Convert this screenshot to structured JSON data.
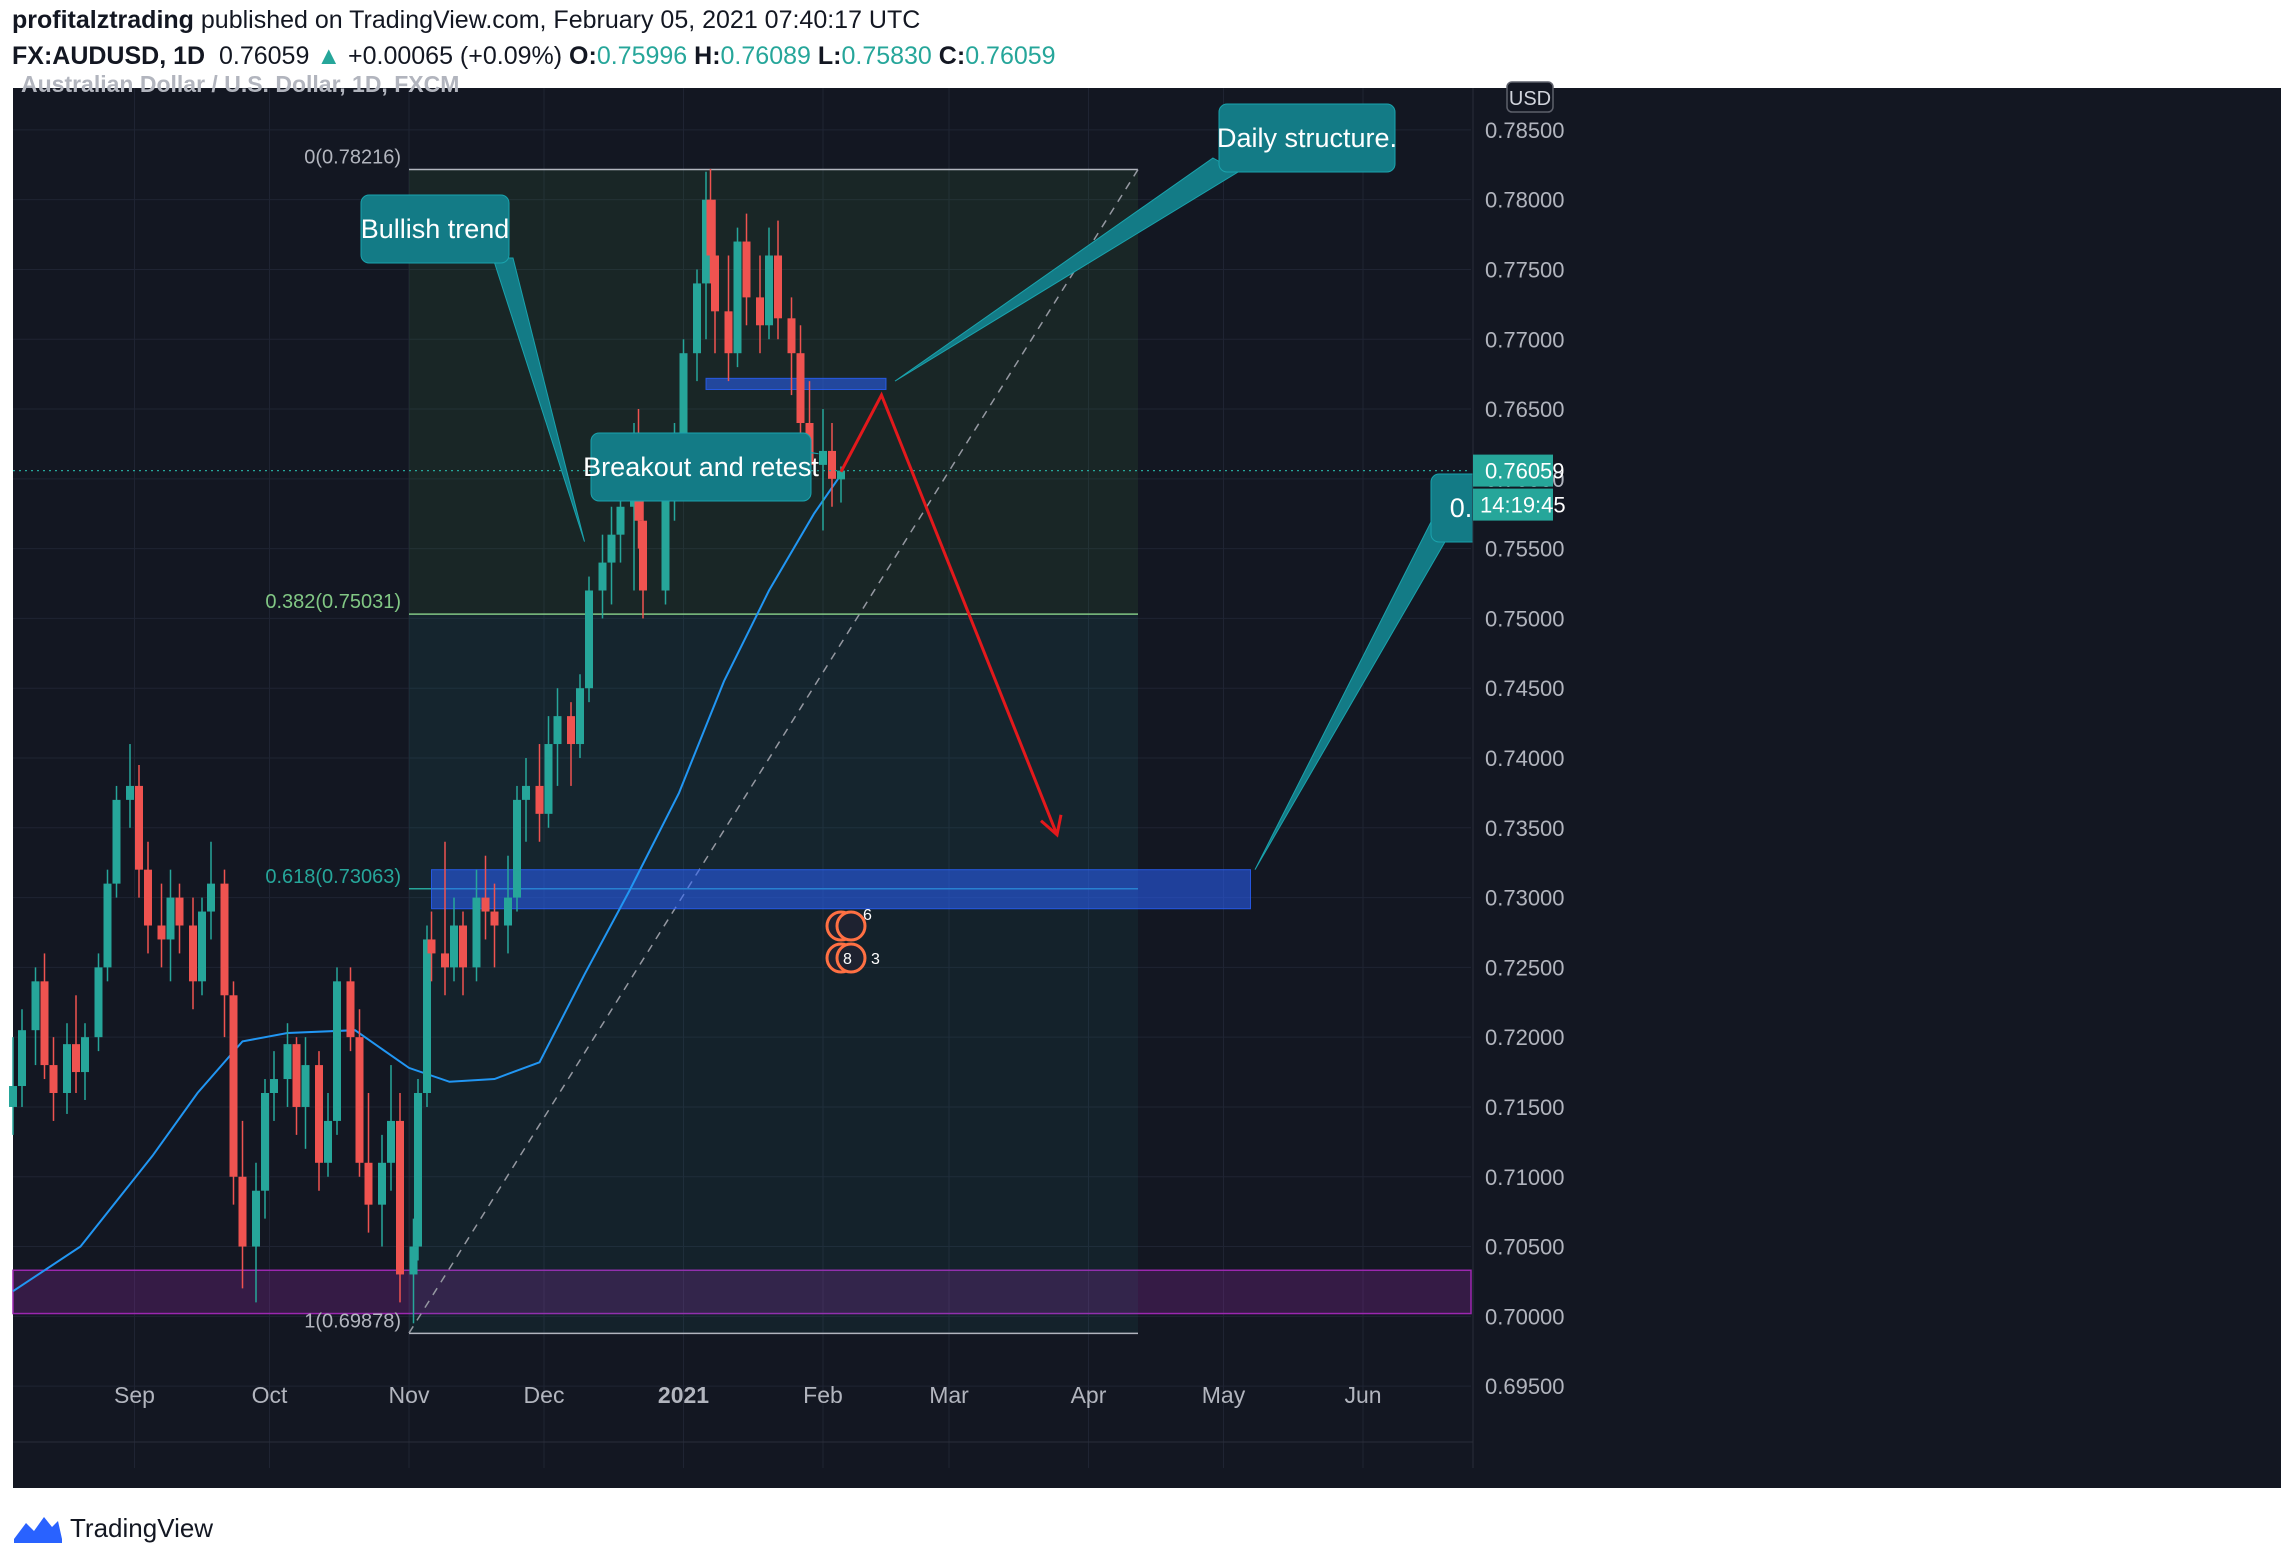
{
  "header": {
    "author": "profitalztrading",
    "published": "published on TradingView.com, February 05, 2021 07:40:17 UTC",
    "symbol": "FX:AUDUSD, 1D",
    "last": "0.76059",
    "arrow": "▲",
    "change": "+0.00065 (+0.09%)",
    "o_label": "O:",
    "o": "0.75996",
    "h_label": "H:",
    "h": "0.76089",
    "l_label": "L:",
    "l": "0.75830",
    "c_label": "C:",
    "c": "0.76059"
  },
  "chart_title": "Australian Dollar / U.S. Dollar, 1D, FXCM",
  "footer": {
    "brand": "TradingView"
  },
  "colors": {
    "bg": "#131722",
    "up": "#26a69a",
    "down": "#ef5350",
    "ma": "#2196f3",
    "callout": "#137b86",
    "zone": "#2962ff",
    "purple_zone": "#9c27b0",
    "arrow": "#e3191c"
  },
  "chart_data": {
    "type": "candlestick",
    "y_axis": {
      "currency": "USD",
      "ylim": [
        0.692,
        0.788
      ],
      "ticks": [
        "0.69500",
        "0.70000",
        "0.70500",
        "0.71000",
        "0.71500",
        "0.72000",
        "0.72500",
        "0.73000",
        "0.73500",
        "0.74000",
        "0.74500",
        "0.75000",
        "0.75500",
        "0.76000",
        "0.76500",
        "0.77000",
        "0.77500",
        "0.78000",
        "0.78500"
      ]
    },
    "x_axis": {
      "labels": [
        {
          "label": "Sep",
          "date": "2020-09-01"
        },
        {
          "label": "Oct",
          "date": "2020-10-01"
        },
        {
          "label": "Nov",
          "date": "2020-11-01"
        },
        {
          "label": "Dec",
          "date": "2020-12-01"
        },
        {
          "label": "2021",
          "date": "2021-01-01"
        },
        {
          "label": "Feb",
          "date": "2021-02-01"
        },
        {
          "label": "Mar",
          "date": "2021-03-01"
        },
        {
          "label": "Apr",
          "date": "2021-04-01"
        },
        {
          "label": "May",
          "date": "2021-05-01"
        },
        {
          "label": "Jun",
          "date": "2021-06-01"
        }
      ],
      "range": [
        "2020-08-05",
        "2021-06-25"
      ]
    },
    "last_price": {
      "value": 0.76059,
      "label": "0.76059",
      "countdown": "14:19:45"
    },
    "fibonacci": {
      "from": "2020-11-01",
      "to": "2021-04-12",
      "levels": [
        {
          "label": "0(0.78216)",
          "value": 0.78216,
          "color": "#b2b5be"
        },
        {
          "label": "0.382(0.75031)",
          "value": 0.75031,
          "color": "#81c784"
        },
        {
          "label": "0.618(0.73063)",
          "value": 0.73063,
          "color": "#26a69a"
        },
        {
          "label": "1(0.69878)",
          "value": 0.69878,
          "color": "#b2b5be"
        }
      ]
    },
    "zones": [
      {
        "name": "support-zone",
        "from": "2020-11-06",
        "to": "2021-05-07",
        "top": 0.732,
        "bottom": 0.7292
      },
      {
        "name": "resistance-zone",
        "from": "2021-01-06",
        "to": "2021-02-15",
        "top": 0.7672,
        "bottom": 0.7664
      },
      {
        "name": "purple-zone",
        "from": "2020-08-05",
        "to": "2021-06-25",
        "top": 0.7033,
        "bottom": 0.7002
      }
    ],
    "annotations": [
      {
        "text": "Bullish trend",
        "anchor": {
          "date": "2020-12-10",
          "value": 0.7555
        }
      },
      {
        "text": "Breakout and retest",
        "anchor": {
          "date": "2021-01-31",
          "value": 0.7618
        }
      },
      {
        "text": "Daily structure.",
        "anchor": {
          "date": "2021-02-17",
          "value": 0.767
        }
      },
      {
        "text": "0.",
        "anchor": {
          "date": "2021-05-08",
          "value": 0.732
        }
      }
    ],
    "projection": [
      {
        "date": "2021-02-05",
        "value": 0.7605
      },
      {
        "date": "2021-02-14",
        "value": 0.766
      },
      {
        "date": "2021-03-25",
        "value": 0.7345
      }
    ],
    "trendline": [
      {
        "date": "2020-11-01",
        "value": 0.6988
      },
      {
        "date": "2021-04-12",
        "value": 0.78216
      }
    ],
    "event_markers": [
      {
        "date": "2021-02-05",
        "count": "6",
        "position": "upper"
      },
      {
        "date": "2021-02-05",
        "count": "8",
        "extra": "3",
        "position": "lower"
      }
    ],
    "ma": [
      {
        "date": "2020-08-05",
        "value": 0.7018
      },
      {
        "date": "2020-08-20",
        "value": 0.705
      },
      {
        "date": "2020-09-05",
        "value": 0.7115
      },
      {
        "date": "2020-09-15",
        "value": 0.716
      },
      {
        "date": "2020-09-25",
        "value": 0.7197
      },
      {
        "date": "2020-10-05",
        "value": 0.7203
      },
      {
        "date": "2020-10-20",
        "value": 0.7205
      },
      {
        "date": "2020-11-01",
        "value": 0.7178
      },
      {
        "date": "2020-11-10",
        "value": 0.7168
      },
      {
        "date": "2020-11-20",
        "value": 0.717
      },
      {
        "date": "2020-11-30",
        "value": 0.7182
      },
      {
        "date": "2020-12-10",
        "value": 0.7245
      },
      {
        "date": "2020-12-20",
        "value": 0.7305
      },
      {
        "date": "2020-12-31",
        "value": 0.7375
      },
      {
        "date": "2021-01-10",
        "value": 0.7455
      },
      {
        "date": "2021-01-20",
        "value": 0.752
      },
      {
        "date": "2021-01-30",
        "value": 0.7575
      },
      {
        "date": "2021-02-05",
        "value": 0.7603
      }
    ],
    "candles": [
      {
        "d": "2020-08-05",
        "o": 0.715,
        "h": 0.72,
        "l": 0.713,
        "c": 0.7165
      },
      {
        "d": "2020-08-07",
        "o": 0.7165,
        "h": 0.722,
        "l": 0.715,
        "c": 0.7205
      },
      {
        "d": "2020-08-10",
        "o": 0.7205,
        "h": 0.725,
        "l": 0.718,
        "c": 0.724
      },
      {
        "d": "2020-08-12",
        "o": 0.724,
        "h": 0.726,
        "l": 0.717,
        "c": 0.718
      },
      {
        "d": "2020-08-14",
        "o": 0.718,
        "h": 0.72,
        "l": 0.714,
        "c": 0.716
      },
      {
        "d": "2020-08-17",
        "o": 0.716,
        "h": 0.721,
        "l": 0.7145,
        "c": 0.7195
      },
      {
        "d": "2020-08-19",
        "o": 0.7195,
        "h": 0.723,
        "l": 0.716,
        "c": 0.7175
      },
      {
        "d": "2020-08-21",
        "o": 0.7175,
        "h": 0.721,
        "l": 0.7155,
        "c": 0.72
      },
      {
        "d": "2020-08-24",
        "o": 0.72,
        "h": 0.726,
        "l": 0.719,
        "c": 0.725
      },
      {
        "d": "2020-08-26",
        "o": 0.725,
        "h": 0.732,
        "l": 0.724,
        "c": 0.731
      },
      {
        "d": "2020-08-28",
        "o": 0.731,
        "h": 0.738,
        "l": 0.73,
        "c": 0.737
      },
      {
        "d": "2020-08-31",
        "o": 0.737,
        "h": 0.741,
        "l": 0.735,
        "c": 0.738
      },
      {
        "d": "2020-09-02",
        "o": 0.738,
        "h": 0.7395,
        "l": 0.73,
        "c": 0.732
      },
      {
        "d": "2020-09-04",
        "o": 0.732,
        "h": 0.734,
        "l": 0.726,
        "c": 0.728
      },
      {
        "d": "2020-09-07",
        "o": 0.728,
        "h": 0.731,
        "l": 0.725,
        "c": 0.727
      },
      {
        "d": "2020-09-09",
        "o": 0.727,
        "h": 0.732,
        "l": 0.724,
        "c": 0.73
      },
      {
        "d": "2020-09-11",
        "o": 0.73,
        "h": 0.731,
        "l": 0.726,
        "c": 0.728
      },
      {
        "d": "2020-09-14",
        "o": 0.728,
        "h": 0.73,
        "l": 0.722,
        "c": 0.724
      },
      {
        "d": "2020-09-16",
        "o": 0.724,
        "h": 0.73,
        "l": 0.723,
        "c": 0.729
      },
      {
        "d": "2020-09-18",
        "o": 0.729,
        "h": 0.734,
        "l": 0.727,
        "c": 0.731
      },
      {
        "d": "2020-09-21",
        "o": 0.731,
        "h": 0.732,
        "l": 0.72,
        "c": 0.723
      },
      {
        "d": "2020-09-23",
        "o": 0.723,
        "h": 0.724,
        "l": 0.708,
        "c": 0.71
      },
      {
        "d": "2020-09-25",
        "o": 0.71,
        "h": 0.714,
        "l": 0.702,
        "c": 0.705
      },
      {
        "d": "2020-09-28",
        "o": 0.705,
        "h": 0.711,
        "l": 0.701,
        "c": 0.709
      },
      {
        "d": "2020-09-30",
        "o": 0.709,
        "h": 0.717,
        "l": 0.707,
        "c": 0.716
      },
      {
        "d": "2020-10-02",
        "o": 0.716,
        "h": 0.719,
        "l": 0.714,
        "c": 0.717
      },
      {
        "d": "2020-10-05",
        "o": 0.717,
        "h": 0.721,
        "l": 0.715,
        "c": 0.7195
      },
      {
        "d": "2020-10-07",
        "o": 0.7195,
        "h": 0.72,
        "l": 0.713,
        "c": 0.715
      },
      {
        "d": "2020-10-09",
        "o": 0.715,
        "h": 0.72,
        "l": 0.712,
        "c": 0.718
      },
      {
        "d": "2020-10-12",
        "o": 0.718,
        "h": 0.719,
        "l": 0.709,
        "c": 0.711
      },
      {
        "d": "2020-10-14",
        "o": 0.711,
        "h": 0.716,
        "l": 0.71,
        "c": 0.714
      },
      {
        "d": "2020-10-16",
        "o": 0.714,
        "h": 0.725,
        "l": 0.713,
        "c": 0.724
      },
      {
        "d": "2020-10-19",
        "o": 0.724,
        "h": 0.725,
        "l": 0.719,
        "c": 0.72
      },
      {
        "d": "2020-10-21",
        "o": 0.72,
        "h": 0.722,
        "l": 0.71,
        "c": 0.711
      },
      {
        "d": "2020-10-23",
        "o": 0.711,
        "h": 0.716,
        "l": 0.706,
        "c": 0.708
      },
      {
        "d": "2020-10-26",
        "o": 0.708,
        "h": 0.713,
        "l": 0.705,
        "c": 0.711
      },
      {
        "d": "2020-10-28",
        "o": 0.711,
        "h": 0.718,
        "l": 0.709,
        "c": 0.714
      },
      {
        "d": "2020-10-30",
        "o": 0.714,
        "h": 0.716,
        "l": 0.701,
        "c": 0.703
      },
      {
        "d": "2020-11-02",
        "o": 0.703,
        "h": 0.707,
        "l": 0.6995,
        "c": 0.705
      },
      {
        "d": "2020-11-03",
        "o": 0.705,
        "h": 0.717,
        "l": 0.704,
        "c": 0.716
      },
      {
        "d": "2020-11-05",
        "o": 0.716,
        "h": 0.728,
        "l": 0.715,
        "c": 0.727
      },
      {
        "d": "2020-11-06",
        "o": 0.727,
        "h": 0.729,
        "l": 0.724,
        "c": 0.726
      },
      {
        "d": "2020-11-09",
        "o": 0.726,
        "h": 0.734,
        "l": 0.723,
        "c": 0.725
      },
      {
        "d": "2020-11-11",
        "o": 0.725,
        "h": 0.73,
        "l": 0.724,
        "c": 0.728
      },
      {
        "d": "2020-11-13",
        "o": 0.728,
        "h": 0.729,
        "l": 0.723,
        "c": 0.725
      },
      {
        "d": "2020-11-16",
        "o": 0.725,
        "h": 0.732,
        "l": 0.724,
        "c": 0.73
      },
      {
        "d": "2020-11-18",
        "o": 0.73,
        "h": 0.733,
        "l": 0.727,
        "c": 0.729
      },
      {
        "d": "2020-11-20",
        "o": 0.729,
        "h": 0.731,
        "l": 0.725,
        "c": 0.728
      },
      {
        "d": "2020-11-23",
        "o": 0.728,
        "h": 0.733,
        "l": 0.726,
        "c": 0.73
      },
      {
        "d": "2020-11-25",
        "o": 0.73,
        "h": 0.738,
        "l": 0.729,
        "c": 0.737
      },
      {
        "d": "2020-11-27",
        "o": 0.737,
        "h": 0.74,
        "l": 0.734,
        "c": 0.738
      },
      {
        "d": "2020-11-30",
        "o": 0.738,
        "h": 0.741,
        "l": 0.734,
        "c": 0.736
      },
      {
        "d": "2020-12-02",
        "o": 0.736,
        "h": 0.743,
        "l": 0.735,
        "c": 0.741
      },
      {
        "d": "2020-12-04",
        "o": 0.741,
        "h": 0.745,
        "l": 0.738,
        "c": 0.743
      },
      {
        "d": "2020-12-07",
        "o": 0.743,
        "h": 0.744,
        "l": 0.738,
        "c": 0.741
      },
      {
        "d": "2020-12-09",
        "o": 0.741,
        "h": 0.746,
        "l": 0.74,
        "c": 0.745
      },
      {
        "d": "2020-12-11",
        "o": 0.745,
        "h": 0.753,
        "l": 0.744,
        "c": 0.752
      },
      {
        "d": "2020-12-14",
        "o": 0.752,
        "h": 0.756,
        "l": 0.75,
        "c": 0.754
      },
      {
        "d": "2020-12-16",
        "o": 0.754,
        "h": 0.758,
        "l": 0.751,
        "c": 0.756
      },
      {
        "d": "2020-12-18",
        "o": 0.756,
        "h": 0.761,
        "l": 0.754,
        "c": 0.758
      },
      {
        "d": "2020-12-21",
        "o": 0.758,
        "h": 0.764,
        "l": 0.752,
        "c": 0.762
      },
      {
        "d": "2020-12-22",
        "o": 0.762,
        "h": 0.765,
        "l": 0.755,
        "c": 0.757
      },
      {
        "d": "2020-12-23",
        "o": 0.757,
        "h": 0.759,
        "l": 0.75,
        "c": 0.752
      },
      {
        "d": "2020-12-28",
        "o": 0.752,
        "h": 0.761,
        "l": 0.751,
        "c": 0.76
      },
      {
        "d": "2020-12-30",
        "o": 0.76,
        "h": 0.764,
        "l": 0.757,
        "c": 0.762
      },
      {
        "d": "2021-01-01",
        "o": 0.762,
        "h": 0.77,
        "l": 0.761,
        "c": 0.769
      },
      {
        "d": "2021-01-04",
        "o": 0.769,
        "h": 0.775,
        "l": 0.767,
        "c": 0.774
      },
      {
        "d": "2021-01-06",
        "o": 0.774,
        "h": 0.782,
        "l": 0.77,
        "c": 0.78
      },
      {
        "d": "2021-01-07",
        "o": 0.78,
        "h": 0.7822,
        "l": 0.774,
        "c": 0.776
      },
      {
        "d": "2021-01-08",
        "o": 0.776,
        "h": 0.78,
        "l": 0.769,
        "c": 0.772
      },
      {
        "d": "2021-01-11",
        "o": 0.772,
        "h": 0.776,
        "l": 0.767,
        "c": 0.769
      },
      {
        "d": "2021-01-13",
        "o": 0.769,
        "h": 0.778,
        "l": 0.768,
        "c": 0.777
      },
      {
        "d": "2021-01-15",
        "o": 0.777,
        "h": 0.779,
        "l": 0.771,
        "c": 0.773
      },
      {
        "d": "2021-01-18",
        "o": 0.773,
        "h": 0.776,
        "l": 0.769,
        "c": 0.771
      },
      {
        "d": "2021-01-20",
        "o": 0.771,
        "h": 0.778,
        "l": 0.77,
        "c": 0.776
      },
      {
        "d": "2021-01-22",
        "o": 0.776,
        "h": 0.7785,
        "l": 0.77,
        "c": 0.7715
      },
      {
        "d": "2021-01-25",
        "o": 0.7715,
        "h": 0.773,
        "l": 0.766,
        "c": 0.769
      },
      {
        "d": "2021-01-27",
        "o": 0.769,
        "h": 0.771,
        "l": 0.762,
        "c": 0.764
      },
      {
        "d": "2021-01-29",
        "o": 0.764,
        "h": 0.767,
        "l": 0.759,
        "c": 0.761
      },
      {
        "d": "2021-02-01",
        "o": 0.761,
        "h": 0.765,
        "l": 0.7563,
        "c": 0.762
      },
      {
        "d": "2021-02-03",
        "o": 0.762,
        "h": 0.764,
        "l": 0.758,
        "c": 0.76
      },
      {
        "d": "2021-02-05",
        "o": 0.75996,
        "h": 0.76089,
        "l": 0.7583,
        "c": 0.76059
      }
    ]
  }
}
